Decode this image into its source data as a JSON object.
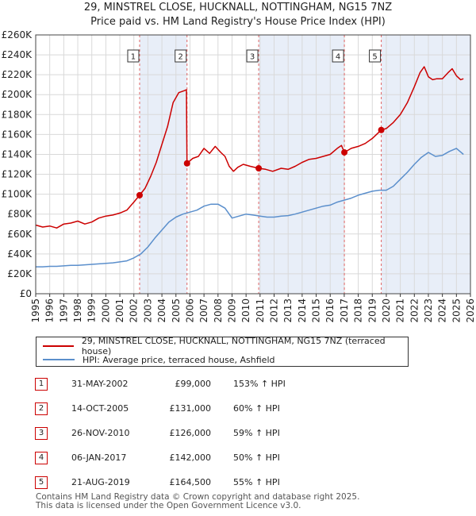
{
  "title": {
    "line1": "29, MINSTREL CLOSE, HUCKNALL, NOTTINGHAM, NG15 7NZ",
    "line2": "Price paid vs. HM Land Registry's House Price Index (HPI)"
  },
  "colors": {
    "property": "#cc0000",
    "hpi": "#5b8fcc",
    "shade": "#e8eef8",
    "grid": "#d9d9d9",
    "marker_line": "#e06666"
  },
  "chart_data": {
    "type": "line",
    "xlim": [
      1995,
      2026
    ],
    "ylim": [
      0,
      260000
    ],
    "x_ticks": [
      "1995",
      "1996",
      "1997",
      "1998",
      "1999",
      "2000",
      "2001",
      "2002",
      "2003",
      "2004",
      "2005",
      "2006",
      "2007",
      "2008",
      "2009",
      "2010",
      "2011",
      "2012",
      "2013",
      "2014",
      "2015",
      "2016",
      "2017",
      "2018",
      "2019",
      "2020",
      "2021",
      "2022",
      "2023",
      "2024",
      "2025",
      "2026"
    ],
    "y_ticks": [
      {
        "value": 0,
        "label": "£0"
      },
      {
        "value": 20000,
        "label": "£20K"
      },
      {
        "value": 40000,
        "label": "£40K"
      },
      {
        "value": 60000,
        "label": "£60K"
      },
      {
        "value": 80000,
        "label": "£80K"
      },
      {
        "value": 100000,
        "label": "£100K"
      },
      {
        "value": 120000,
        "label": "£120K"
      },
      {
        "value": 140000,
        "label": "£140K"
      },
      {
        "value": 160000,
        "label": "£160K"
      },
      {
        "value": 180000,
        "label": "£180K"
      },
      {
        "value": 200000,
        "label": "£200K"
      },
      {
        "value": 220000,
        "label": "£220K"
      },
      {
        "value": 240000,
        "label": "£240K"
      },
      {
        "value": 260000,
        "label": "£260K"
      }
    ],
    "shaded_ranges": [
      [
        2002.41,
        2005.79
      ],
      [
        2010.9,
        2017.01
      ],
      [
        2019.64,
        2026
      ]
    ],
    "series": [
      {
        "name": "29, MINSTREL CLOSE, HUCKNALL, NOTTINGHAM, NG15 7NZ (terraced house)",
        "color": "#cc0000",
        "x": [
          1995,
          1995.5,
          1996,
          1996.5,
          1997,
          1997.5,
          1998,
          1998.5,
          1999,
          1999.5,
          2000,
          2000.5,
          2001,
          2001.5,
          2002,
          2002.41,
          2002.8,
          2003.2,
          2003.6,
          2004,
          2004.4,
          2004.8,
          2005.2,
          2005.6,
          2005.75,
          2005.79,
          2006.2,
          2006.6,
          2007,
          2007.4,
          2007.8,
          2008.2,
          2008.5,
          2008.8,
          2009.1,
          2009.4,
          2009.8,
          2010.3,
          2010.9,
          2011.4,
          2011.9,
          2012.5,
          2013,
          2013.5,
          2014,
          2014.5,
          2015,
          2015.5,
          2016,
          2016.5,
          2016.8,
          2017.01,
          2017.5,
          2018,
          2018.5,
          2019,
          2019.64,
          2020,
          2020.5,
          2021,
          2021.5,
          2022,
          2022.4,
          2022.7,
          2023,
          2023.3,
          2023.6,
          2024,
          2024.4,
          2024.7,
          2025,
          2025.3,
          2025.5
        ],
        "values": [
          69000,
          67000,
          68000,
          66000,
          70000,
          71000,
          73000,
          70000,
          72000,
          76000,
          78000,
          79000,
          81000,
          84000,
          92000,
          99000,
          106000,
          118000,
          132000,
          150000,
          168000,
          192000,
          202000,
          204000,
          205000,
          131000,
          136000,
          138000,
          146000,
          141000,
          148000,
          142000,
          138000,
          128000,
          123000,
          127000,
          130000,
          128000,
          126000,
          125000,
          123000,
          126000,
          125000,
          128000,
          132000,
          135000,
          136000,
          138000,
          140000,
          146000,
          149000,
          142000,
          146000,
          148000,
          151000,
          156000,
          164500,
          166000,
          172000,
          180000,
          192000,
          208000,
          222000,
          228000,
          218000,
          215000,
          216000,
          216000,
          222000,
          226000,
          219000,
          215000,
          216000
        ]
      },
      {
        "name": "HPI: Average price, terraced house, Ashfield",
        "color": "#5b8fcc",
        "x": [
          1995,
          1995.5,
          1996,
          1996.5,
          1997,
          1997.5,
          1998,
          1998.5,
          1999,
          1999.5,
          2000,
          2000.5,
          2001,
          2001.5,
          2002,
          2002.5,
          2003,
          2003.5,
          2004,
          2004.5,
          2005,
          2005.5,
          2006,
          2006.5,
          2007,
          2007.5,
          2008,
          2008.5,
          2009,
          2009.5,
          2010,
          2010.5,
          2011,
          2011.5,
          2012,
          2012.5,
          2013,
          2013.5,
          2014,
          2014.5,
          2015,
          2015.5,
          2016,
          2016.5,
          2017,
          2017.5,
          2018,
          2018.5,
          2019,
          2019.5,
          2020,
          2020.5,
          2021,
          2021.5,
          2022,
          2022.5,
          2023,
          2023.5,
          2024,
          2024.5,
          2025,
          2025.5
        ],
        "values": [
          27000,
          27000,
          27500,
          27500,
          28000,
          28500,
          28500,
          29000,
          29500,
          30000,
          30500,
          31000,
          32000,
          33000,
          36000,
          40000,
          47000,
          56000,
          64000,
          72000,
          77000,
          80000,
          82000,
          84000,
          88000,
          90000,
          90000,
          86000,
          76000,
          78000,
          80000,
          79000,
          78000,
          77000,
          77000,
          78000,
          78500,
          80000,
          82000,
          84000,
          86000,
          88000,
          89000,
          92000,
          94000,
          96000,
          99000,
          101000,
          103000,
          104000,
          104000,
          108000,
          115000,
          122000,
          130000,
          137000,
          142000,
          138000,
          139000,
          143000,
          146000,
          140000
        ]
      }
    ],
    "sales": [
      {
        "num": "1",
        "x": 2002.41,
        "value": 99000
      },
      {
        "num": "2",
        "x": 2005.79,
        "value": 131000
      },
      {
        "num": "3",
        "x": 2010.9,
        "value": 126000
      },
      {
        "num": "4",
        "x": 2017.01,
        "value": 142000
      },
      {
        "num": "5",
        "x": 2019.64,
        "value": 164500
      }
    ]
  },
  "legend": {
    "property": "29, MINSTREL CLOSE, HUCKNALL, NOTTINGHAM, NG15 7NZ (terraced house)",
    "hpi": "HPI: Average price, terraced house, Ashfield"
  },
  "table": [
    {
      "num": "1",
      "date": "31-MAY-2002",
      "price": "£99,000",
      "hpi": "153% ↑ HPI"
    },
    {
      "num": "2",
      "date": "14-OCT-2005",
      "price": "£131,000",
      "hpi": "60% ↑ HPI"
    },
    {
      "num": "3",
      "date": "26-NOV-2010",
      "price": "£126,000",
      "hpi": "59% ↑ HPI"
    },
    {
      "num": "4",
      "date": "06-JAN-2017",
      "price": "£142,000",
      "hpi": "50% ↑ HPI"
    },
    {
      "num": "5",
      "date": "21-AUG-2019",
      "price": "£164,500",
      "hpi": "55% ↑ HPI"
    }
  ],
  "footer": {
    "line1": "Contains HM Land Registry data © Crown copyright and database right 2025.",
    "line2": "This data is licensed under the Open Government Licence v3.0."
  }
}
